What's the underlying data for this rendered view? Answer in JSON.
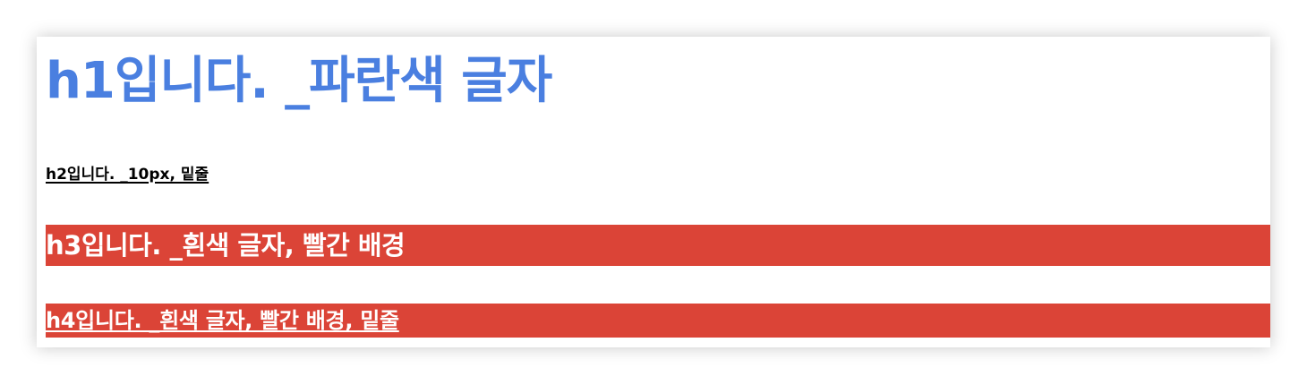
{
  "headings": {
    "h1": "h1입니다. _파란색 글자",
    "h2": "h2입니다. _10px, 밑줄",
    "h3": "h3입니다. _흰색 글자, 빨간 배경",
    "h4": "h4입니다. _흰색 글자, 빨간 배경, 밑줄"
  },
  "colors": {
    "h1_text": "#4a7fe0",
    "h2_text": "#000000",
    "heading_text_light": "#ffffff",
    "red_background": "#db4437",
    "page_background": "#ffffff"
  }
}
